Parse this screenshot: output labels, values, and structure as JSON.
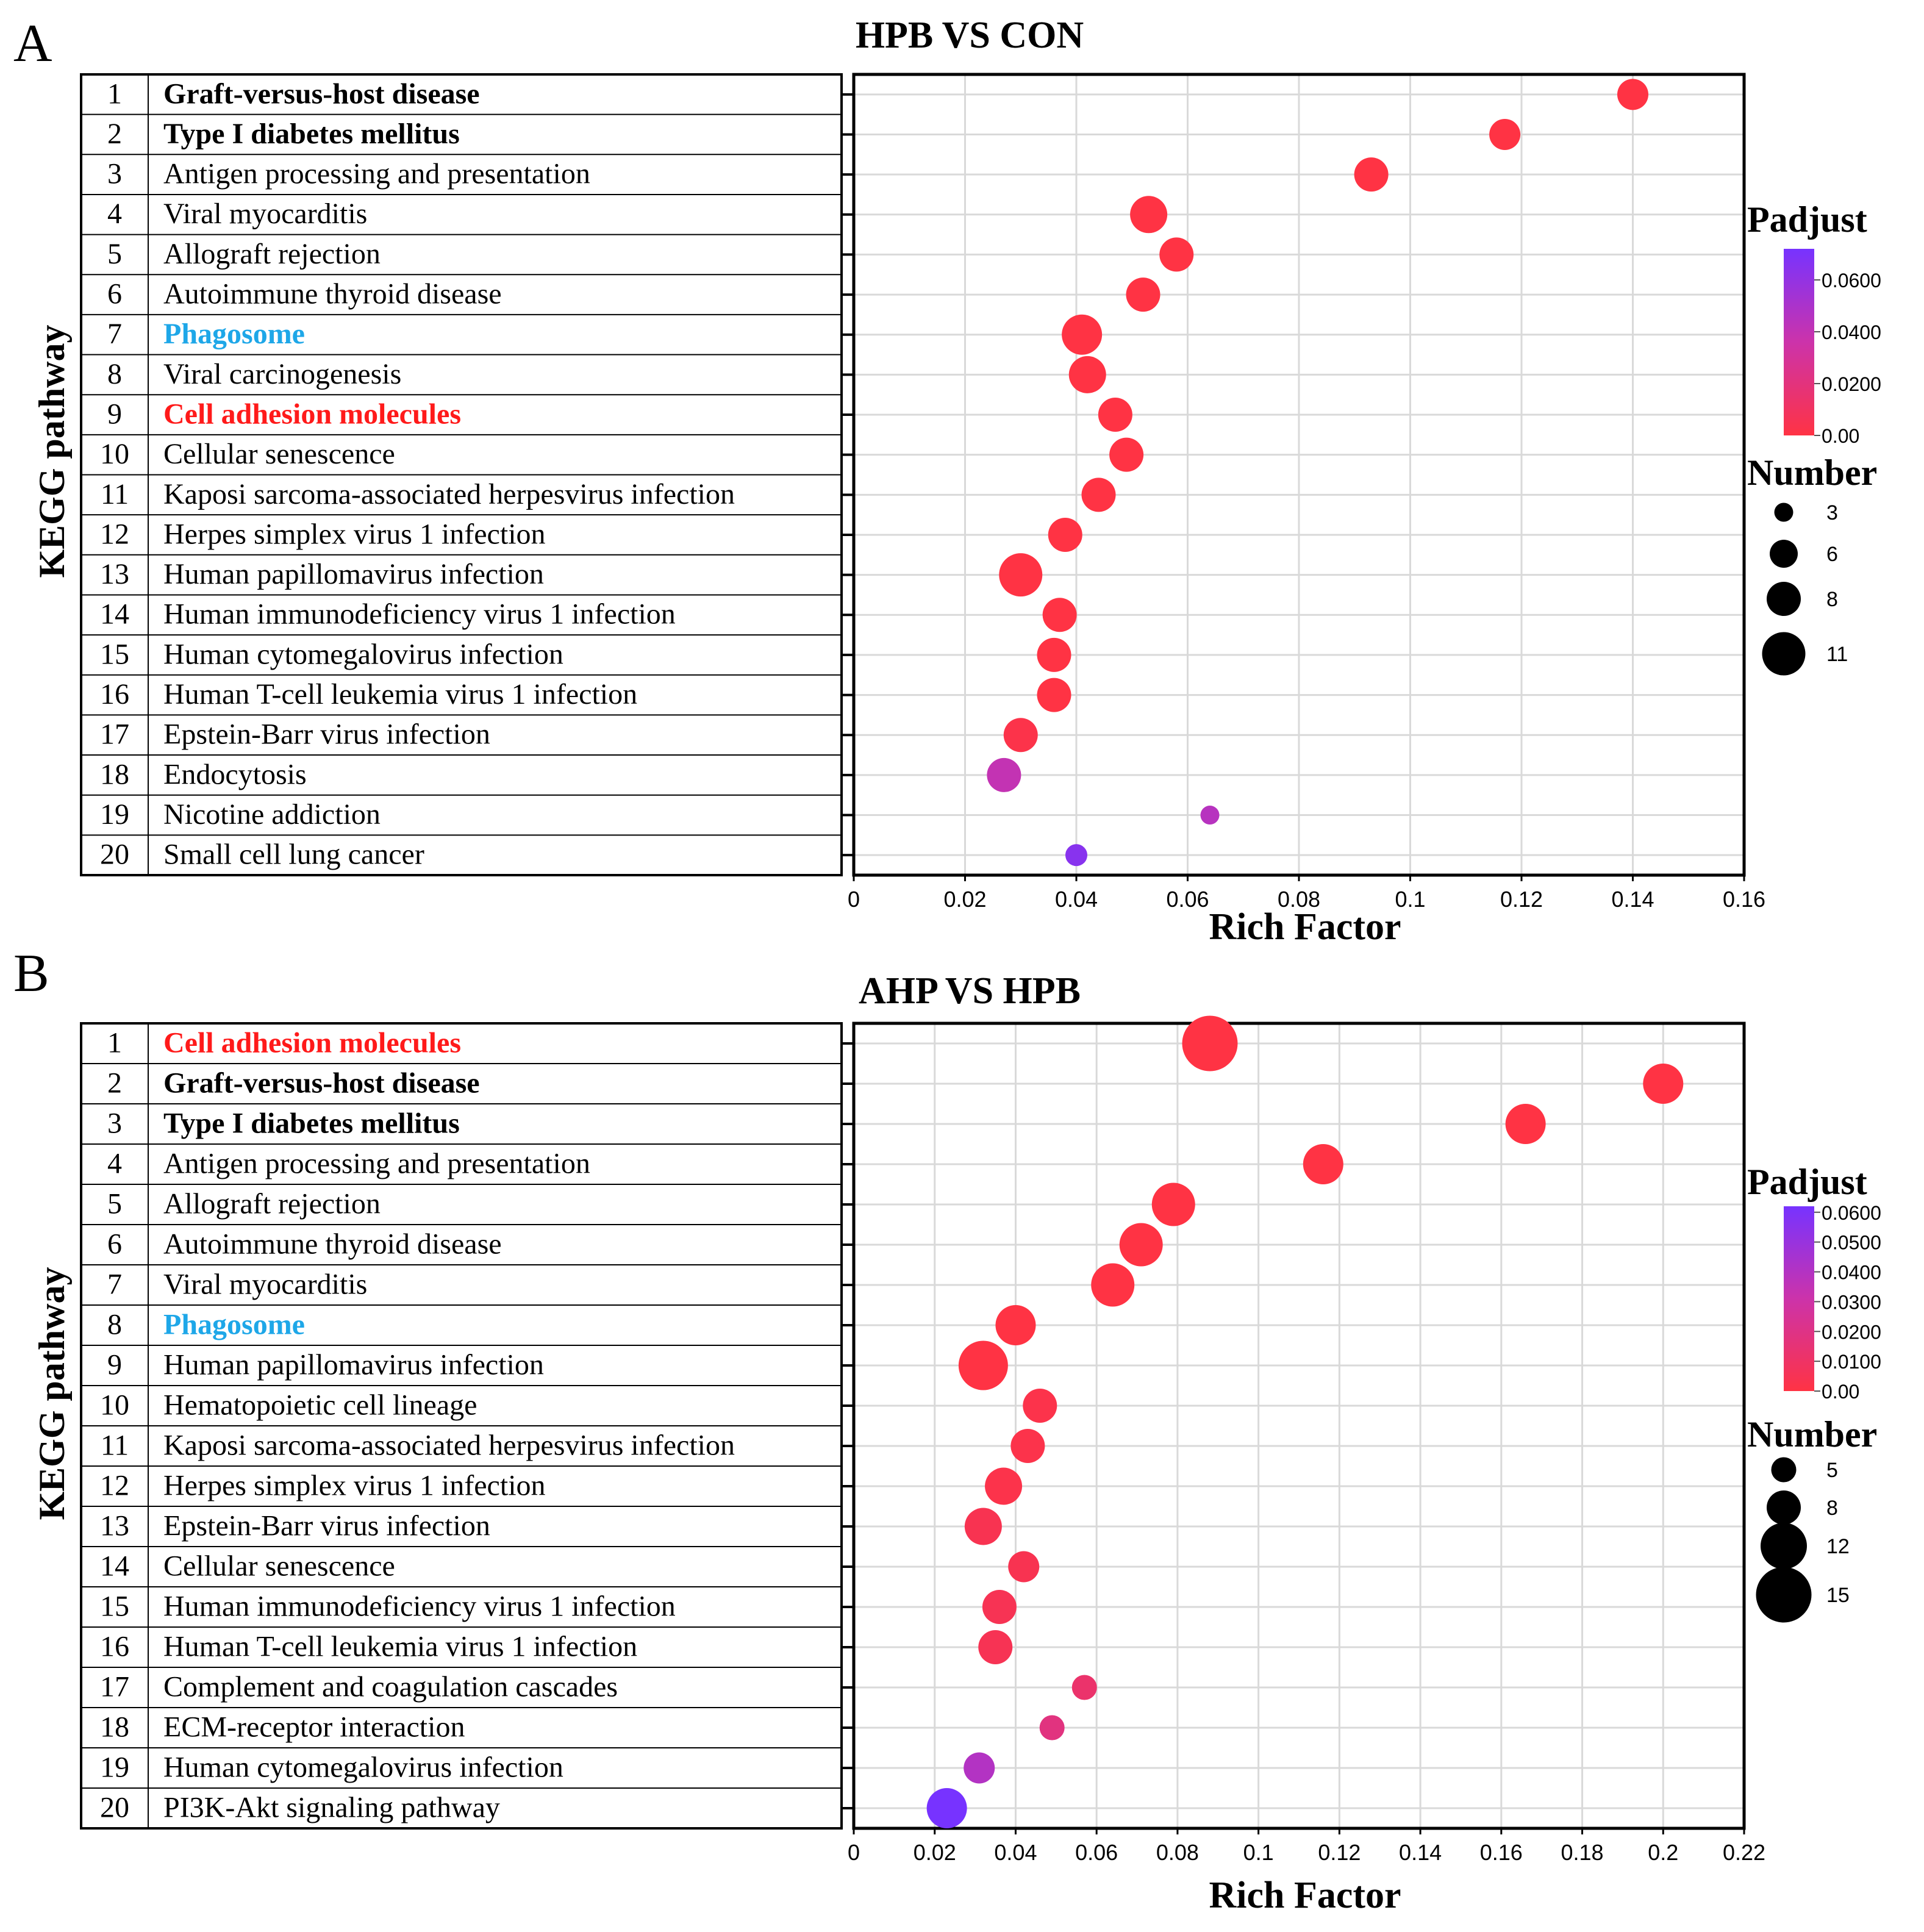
{
  "panels": [
    {
      "letter": "A",
      "title": "HPB VS CON",
      "ylabel": "KEGG pathway",
      "xlabel": "Rich Factor",
      "chart_data": {
        "type": "scatter",
        "title": "HPB VS CON",
        "xlabel": "Rich Factor",
        "ylabel": "KEGG pathway",
        "xlim": [
          0,
          0.16
        ],
        "xticks": [
          0,
          0.02,
          0.04,
          0.06,
          0.08,
          0.1,
          0.12,
          0.14,
          0.16
        ],
        "xtick_labels": [
          "0",
          "0.02",
          "0.04",
          "0.06",
          "0.08",
          "0.1",
          "0.12",
          "0.14",
          "0.16"
        ],
        "pathways": [
          {
            "n": "1",
            "label": "Graft-versus-host disease",
            "style": "bold",
            "rich_factor": 0.14,
            "number": 7,
            "padjust": 0.0
          },
          {
            "n": "2",
            "label": "Type I diabetes mellitus",
            "style": "bold",
            "rich_factor": 0.117,
            "number": 7,
            "padjust": 0.0
          },
          {
            "n": "3",
            "label": "Antigen processing and presentation",
            "style": "normal",
            "rich_factor": 0.093,
            "number": 8,
            "padjust": 0.0
          },
          {
            "n": "4",
            "label": "Viral myocarditis",
            "style": "normal",
            "rich_factor": 0.053,
            "number": 9,
            "padjust": 0.0
          },
          {
            "n": "5",
            "label": "Allograft rejection",
            "style": "normal",
            "rich_factor": 0.058,
            "number": 8,
            "padjust": 0.0
          },
          {
            "n": "6",
            "label": "Autoimmune thyroid disease",
            "style": "normal",
            "rich_factor": 0.052,
            "number": 8,
            "padjust": 0.0
          },
          {
            "n": "7",
            "label": "Phagosome",
            "style": "blue",
            "rich_factor": 0.041,
            "number": 10,
            "padjust": 0.0
          },
          {
            "n": "8",
            "label": "Viral carcinogenesis",
            "style": "normal",
            "rich_factor": 0.042,
            "number": 9,
            "padjust": 0.0
          },
          {
            "n": "9",
            "label": "Cell adhesion molecules",
            "style": "red",
            "rich_factor": 0.047,
            "number": 8,
            "padjust": 0.0
          },
          {
            "n": "10",
            "label": "Cellular senescence",
            "style": "normal",
            "rich_factor": 0.049,
            "number": 8,
            "padjust": 0.0
          },
          {
            "n": "11",
            "label": "Kaposi sarcoma-associated herpesvirus infection",
            "style": "normal",
            "rich_factor": 0.044,
            "number": 8,
            "padjust": 0.0
          },
          {
            "n": "12",
            "label": "Herpes simplex virus 1 infection",
            "style": "normal",
            "rich_factor": 0.038,
            "number": 8,
            "padjust": 0.0
          },
          {
            "n": "13",
            "label": "Human papillomavirus infection",
            "style": "normal",
            "rich_factor": 0.03,
            "number": 11,
            "padjust": 0.0
          },
          {
            "n": "14",
            "label": "Human immunodeficiency virus 1 infection",
            "style": "normal",
            "rich_factor": 0.037,
            "number": 8,
            "padjust": 0.0
          },
          {
            "n": "15",
            "label": "Human cytomegalovirus infection",
            "style": "normal",
            "rich_factor": 0.036,
            "number": 8,
            "padjust": 0.0
          },
          {
            "n": "16",
            "label": "Human T-cell leukemia virus 1 infection",
            "style": "normal",
            "rich_factor": 0.036,
            "number": 8,
            "padjust": 0.0
          },
          {
            "n": "17",
            "label": "Epstein-Barr virus infection",
            "style": "normal",
            "rich_factor": 0.03,
            "number": 8,
            "padjust": 0.002
          },
          {
            "n": "18",
            "label": "Endocytosis",
            "style": "normal",
            "rich_factor": 0.027,
            "number": 8,
            "padjust": 0.04
          },
          {
            "n": "19",
            "label": "Nicotine addiction",
            "style": "normal",
            "rich_factor": 0.064,
            "number": 3,
            "padjust": 0.045
          },
          {
            "n": "20",
            "label": "Small cell lung cancer",
            "style": "normal",
            "rich_factor": 0.04,
            "number": 4,
            "padjust": 0.065
          }
        ],
        "colorbar": {
          "title": "Padjust",
          "min": 0,
          "max": 0.072,
          "ticks": [
            0,
            0.02,
            0.04,
            0.06
          ],
          "tick_labels": [
            "0.00",
            "0.0200",
            "0.0400",
            "0.0600"
          ],
          "color_low": "#ff3344",
          "color_mid": "#cc33aa",
          "color_high": "#7733ff"
        },
        "size_legend": {
          "title": "Number",
          "values": [
            3,
            6,
            8,
            11
          ],
          "labels": [
            "3",
            "6",
            "8",
            "11"
          ]
        }
      }
    },
    {
      "letter": "B",
      "title": "AHP VS HPB",
      "ylabel": "KEGG pathway",
      "xlabel": "Rich Factor",
      "chart_data": {
        "type": "scatter",
        "title": "AHP VS HPB",
        "xlabel": "Rich Factor",
        "ylabel": "KEGG pathway",
        "xlim": [
          0,
          0.22
        ],
        "xticks": [
          0,
          0.02,
          0.04,
          0.06,
          0.08,
          0.1,
          0.12,
          0.14,
          0.16,
          0.18,
          0.2,
          0.22
        ],
        "xtick_labels": [
          "0",
          "0.02",
          "0.04",
          "0.06",
          "0.08",
          "0.1",
          "0.12",
          "0.14",
          "0.16",
          "0.18",
          "0.2",
          "0.22"
        ],
        "pathways": [
          {
            "n": "1",
            "label": "Cell adhesion molecules",
            "style": "red",
            "rich_factor": 0.088,
            "number": 15,
            "padjust": 0.0
          },
          {
            "n": "2",
            "label": "Graft-versus-host disease",
            "style": "bold",
            "rich_factor": 0.2,
            "number": 10,
            "padjust": 0.0
          },
          {
            "n": "3",
            "label": "Type I diabetes mellitus",
            "style": "bold",
            "rich_factor": 0.166,
            "number": 10,
            "padjust": 0.0
          },
          {
            "n": "4",
            "label": "Antigen processing and presentation",
            "style": "normal",
            "rich_factor": 0.116,
            "number": 10,
            "padjust": 0.0
          },
          {
            "n": "5",
            "label": "Allograft rejection",
            "style": "normal",
            "rich_factor": 0.079,
            "number": 11,
            "padjust": 0.0
          },
          {
            "n": "6",
            "label": "Autoimmune thyroid disease",
            "style": "normal",
            "rich_factor": 0.071,
            "number": 11,
            "padjust": 0.0
          },
          {
            "n": "7",
            "label": "Viral myocarditis",
            "style": "normal",
            "rich_factor": 0.064,
            "number": 11,
            "padjust": 0.0
          },
          {
            "n": "8",
            "label": "Phagosome",
            "style": "blue",
            "rich_factor": 0.04,
            "number": 10,
            "padjust": 0.0
          },
          {
            "n": "9",
            "label": "Human papillomavirus infection",
            "style": "normal",
            "rich_factor": 0.032,
            "number": 13,
            "padjust": 0.0
          },
          {
            "n": "10",
            "label": "Hematopoietic cell lineage",
            "style": "normal",
            "rich_factor": 0.046,
            "number": 8,
            "padjust": 0.002
          },
          {
            "n": "11",
            "label": "Kaposi sarcoma-associated herpesvirus infection",
            "style": "normal",
            "rich_factor": 0.043,
            "number": 8,
            "padjust": 0.002
          },
          {
            "n": "12",
            "label": "Herpes simplex virus 1 infection",
            "style": "normal",
            "rich_factor": 0.037,
            "number": 9,
            "padjust": 0.002
          },
          {
            "n": "13",
            "label": "Epstein-Barr virus infection",
            "style": "normal",
            "rich_factor": 0.032,
            "number": 9,
            "padjust": 0.004
          },
          {
            "n": "14",
            "label": "Cellular senescence",
            "style": "normal",
            "rich_factor": 0.042,
            "number": 7,
            "padjust": 0.004
          },
          {
            "n": "15",
            "label": "Human immunodeficiency virus 1 infection",
            "style": "normal",
            "rich_factor": 0.036,
            "number": 8,
            "padjust": 0.005
          },
          {
            "n": "16",
            "label": "Human T-cell leukemia virus 1 infection",
            "style": "normal",
            "rich_factor": 0.035,
            "number": 8,
            "padjust": 0.005
          },
          {
            "n": "17",
            "label": "Complement and coagulation cascades",
            "style": "normal",
            "rich_factor": 0.057,
            "number": 5,
            "padjust": 0.012
          },
          {
            "n": "18",
            "label": "ECM-receptor interaction",
            "style": "normal",
            "rich_factor": 0.049,
            "number": 5,
            "padjust": 0.018
          },
          {
            "n": "19",
            "label": "Human cytomegalovirus infection",
            "style": "normal",
            "rich_factor": 0.031,
            "number": 7,
            "padjust": 0.04
          },
          {
            "n": "20",
            "label": "PI3K-Akt signaling pathway",
            "style": "normal",
            "rich_factor": 0.023,
            "number": 10,
            "padjust": 0.065
          }
        ],
        "colorbar": {
          "title": "Padjust",
          "min": 0,
          "max": 0.062,
          "ticks": [
            0,
            0.01,
            0.02,
            0.03,
            0.04,
            0.05,
            0.06
          ],
          "tick_labels": [
            "0.00",
            "0.0100",
            "0.0200",
            "0.0300",
            "0.0400",
            "0.0500",
            "0.0600"
          ],
          "color_low": "#ff3344",
          "color_mid": "#cc33aa",
          "color_high": "#7733ff"
        },
        "size_legend": {
          "title": "Number",
          "values": [
            5,
            8,
            12,
            15
          ],
          "labels": [
            "5",
            "8",
            "12",
            "15"
          ]
        }
      }
    }
  ],
  "colors": {
    "pathway_red": "#ff1a1a",
    "pathway_blue": "#1ea7e8",
    "grid": "#d9d9d9",
    "text": "#000000"
  }
}
